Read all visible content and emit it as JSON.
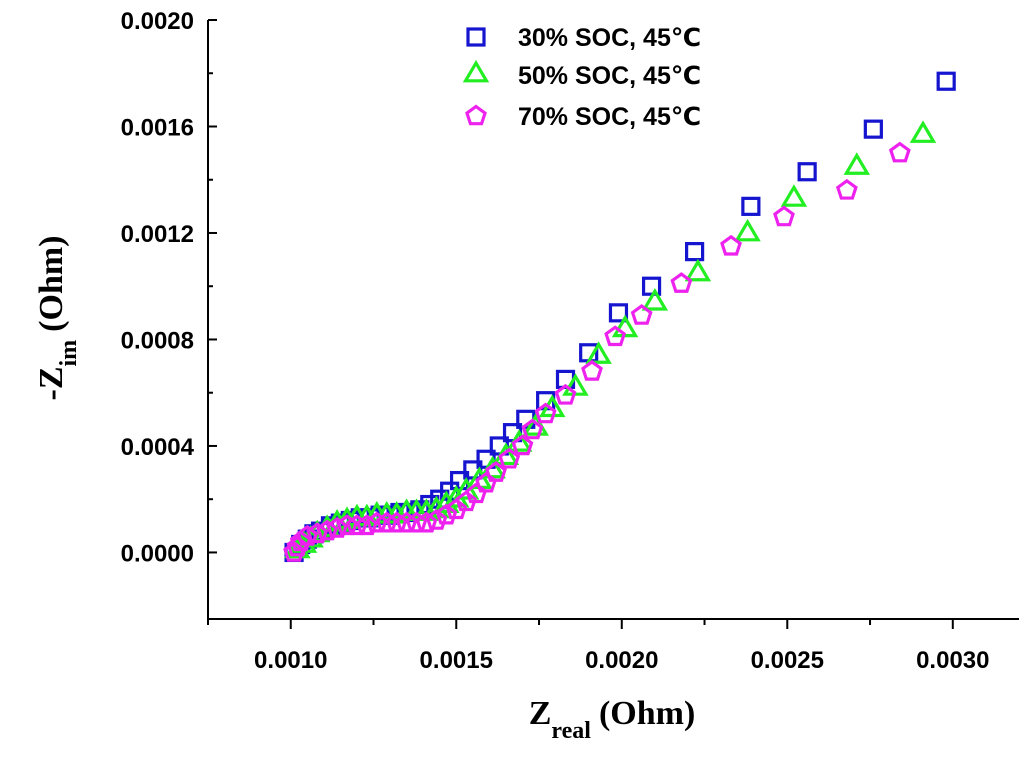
{
  "chart_data": {
    "type": "scatter",
    "xlabel": {
      "main": "Z",
      "sub": "real",
      "unit": "(Ohm)"
    },
    "ylabel": {
      "prefix": "-Z",
      "sub": "im",
      "unit": "(Ohm)"
    },
    "xlim": [
      0.00075,
      0.0032
    ],
    "ylim": [
      -0.00025,
      0.002
    ],
    "xticks": [
      0.001,
      0.0015,
      0.002,
      0.0025,
      0.003
    ],
    "xtick_labels": [
      "0.0010",
      "0.0015",
      "0.0020",
      "0.0025",
      "0.0030"
    ],
    "yticks": [
      0.0,
      0.0004,
      0.0008,
      0.0012,
      0.0016,
      0.002
    ],
    "ytick_labels": [
      "0.0000",
      "0.0004",
      "0.0008",
      "0.0012",
      "0.0016",
      "0.0020"
    ],
    "legend_position": "top-center",
    "series": [
      {
        "name": "30% SOC, 45℃",
        "marker": "square",
        "color": "#1515d0",
        "x": [
          0.00101,
          0.00103,
          0.00105,
          0.00107,
          0.00109,
          0.00112,
          0.00115,
          0.00118,
          0.00121,
          0.00124,
          0.00127,
          0.0013,
          0.00133,
          0.00136,
          0.00139,
          0.00142,
          0.00145,
          0.00148,
          0.00151,
          0.00155,
          0.00159,
          0.00163,
          0.00167,
          0.00171,
          0.00177,
          0.00183,
          0.0019,
          0.00199,
          0.00209,
          0.00222,
          0.00239,
          0.00256,
          0.00276,
          0.00298
        ],
        "y": [
          0.0,
          3e-05,
          5e-05,
          7e-05,
          8e-05,
          0.0001,
          0.00011,
          0.00012,
          0.00013,
          0.00013,
          0.00014,
          0.00014,
          0.00015,
          0.00015,
          0.00016,
          0.00018,
          0.0002,
          0.00023,
          0.00027,
          0.00031,
          0.00035,
          0.0004,
          0.00045,
          0.0005,
          0.00057,
          0.00065,
          0.00075,
          0.0009,
          0.001,
          0.00113,
          0.0013,
          0.00143,
          0.00159,
          0.00177
        ]
      },
      {
        "name": "50% SOC, 45℃",
        "marker": "triangle",
        "color": "#22ee22",
        "x": [
          0.00102,
          0.00104,
          0.00106,
          0.00108,
          0.00111,
          0.00114,
          0.00117,
          0.0012,
          0.00123,
          0.00126,
          0.00129,
          0.00132,
          0.00135,
          0.00138,
          0.00141,
          0.00144,
          0.00147,
          0.0015,
          0.00153,
          0.00157,
          0.00161,
          0.00165,
          0.00169,
          0.00174,
          0.00179,
          0.00186,
          0.00193,
          0.00201,
          0.0021,
          0.00223,
          0.00238,
          0.00252,
          0.00271,
          0.00291
        ],
        "y": [
          1e-05,
          3e-05,
          5e-05,
          7e-05,
          9e-05,
          0.00011,
          0.00012,
          0.00013,
          0.00013,
          0.00014,
          0.00014,
          0.00014,
          0.00015,
          0.00015,
          0.00015,
          0.00016,
          0.00018,
          0.0002,
          0.00023,
          0.00027,
          0.00031,
          0.00036,
          0.00041,
          0.00047,
          0.00054,
          0.00062,
          0.00074,
          0.00084,
          0.00094,
          0.00105,
          0.0012,
          0.00133,
          0.00145,
          0.00157
        ]
      },
      {
        "name": "70% SOC, 45℃",
        "marker": "pentagon",
        "color": "#ee22ee",
        "x": [
          0.00101,
          0.00102,
          0.00103,
          0.00105,
          0.00108,
          0.00111,
          0.00114,
          0.00117,
          0.0012,
          0.00123,
          0.00126,
          0.00129,
          0.00132,
          0.00135,
          0.00138,
          0.00141,
          0.00144,
          0.00147,
          0.0015,
          0.00153,
          0.00156,
          0.00159,
          0.00162,
          0.00166,
          0.0017,
          0.00173,
          0.00177,
          0.00183,
          0.00191,
          0.00198,
          0.00206,
          0.00218,
          0.00233,
          0.00249,
          0.00268,
          0.00284
        ],
        "y": [
          0.0,
          2e-05,
          4e-05,
          6e-05,
          7e-05,
          8e-05,
          9e-05,
          0.0001,
          0.0001,
          0.0001,
          0.00011,
          0.00011,
          0.00011,
          0.00011,
          0.00011,
          0.00011,
          0.00012,
          0.00014,
          0.00016,
          0.00019,
          0.00022,
          0.00026,
          0.0003,
          0.00035,
          0.0004,
          0.00046,
          0.00052,
          0.00059,
          0.00068,
          0.00081,
          0.00089,
          0.00101,
          0.00115,
          0.00126,
          0.00136,
          0.0015
        ]
      }
    ]
  }
}
